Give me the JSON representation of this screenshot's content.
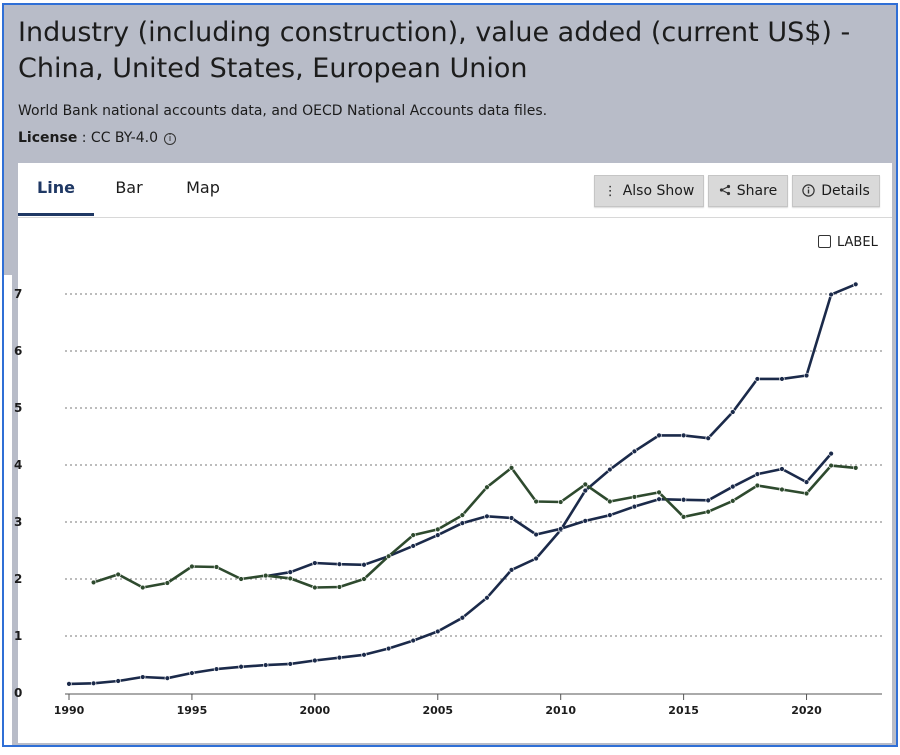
{
  "title": "Industry (including construction), value added (current US$) - China, United States, European Union",
  "source": "World Bank national accounts data, and OECD National Accounts data files.",
  "license": {
    "label": "License",
    "value": " : CC BY-4.0"
  },
  "tabs": [
    "Line",
    "Bar",
    "Map"
  ],
  "active_tab": "Line",
  "buttons": {
    "also_show": "Also Show",
    "share": "Share",
    "details": "Details"
  },
  "label_toggle": "LABEL",
  "colors": {
    "china": "#1b2a4a",
    "united_states": "#1b2a4a",
    "european_union": "#2e4a2e",
    "accent": "#1f3864",
    "frame_border": "#2f6fd6"
  },
  "chart_data": {
    "type": "line",
    "ylim": [
      0,
      7.3
    ],
    "xlim": [
      1990,
      2022.5
    ],
    "yticks": [
      0,
      1,
      2,
      3,
      4,
      5,
      6,
      7
    ],
    "xticks": [
      1990,
      1995,
      2000,
      2005,
      2010,
      2015,
      2020
    ],
    "grid": true,
    "x": [
      1990,
      1991,
      1992,
      1993,
      1994,
      1995,
      1996,
      1997,
      1998,
      1999,
      2000,
      2001,
      2002,
      2003,
      2004,
      2005,
      2006,
      2007,
      2008,
      2009,
      2010,
      2011,
      2012,
      2013,
      2014,
      2015,
      2016,
      2017,
      2018,
      2019,
      2020,
      2021,
      2022
    ],
    "series": [
      {
        "key": "china",
        "values": [
          0.16,
          0.17,
          0.21,
          0.28,
          0.26,
          0.35,
          0.42,
          0.46,
          0.49,
          0.51,
          0.57,
          0.62,
          0.67,
          0.78,
          0.92,
          1.08,
          1.32,
          1.67,
          2.16,
          2.36,
          2.86,
          3.55,
          3.92,
          4.24,
          4.52,
          4.52,
          4.47,
          4.93,
          5.51,
          5.51,
          5.57,
          6.99,
          7.17
        ]
      },
      {
        "key": "united_states",
        "values": [
          null,
          null,
          null,
          null,
          null,
          null,
          null,
          null,
          2.05,
          2.12,
          2.28,
          2.26,
          2.25,
          2.4,
          2.58,
          2.77,
          2.98,
          3.1,
          3.07,
          2.78,
          2.88,
          3.02,
          3.12,
          3.27,
          3.4,
          3.39,
          3.38,
          3.62,
          3.84,
          3.93,
          3.7,
          4.2,
          null
        ]
      },
      {
        "key": "european_union",
        "values": [
          null,
          1.94,
          2.08,
          1.85,
          1.93,
          2.22,
          2.21,
          2.0,
          2.06,
          2.01,
          1.85,
          1.86,
          2.0,
          2.4,
          2.77,
          2.87,
          3.12,
          3.61,
          3.95,
          3.36,
          3.35,
          3.66,
          3.36,
          3.44,
          3.52,
          3.09,
          3.18,
          3.37,
          3.64,
          3.57,
          3.5,
          3.99,
          3.95
        ]
      }
    ]
  }
}
